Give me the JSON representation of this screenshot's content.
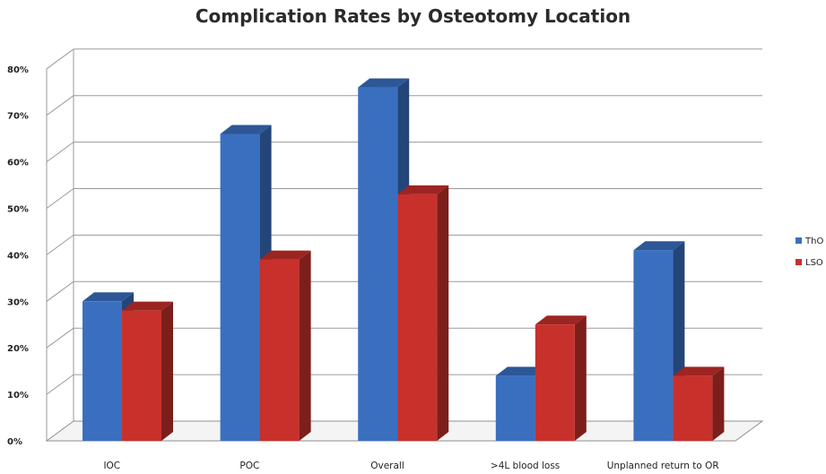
{
  "chart_data": {
    "type": "bar",
    "title": "Complication Rates by Osteotomy Location",
    "categories": [
      "IOC",
      "POC",
      "Overall",
      ">4L blood loss",
      "Unplanned return to OR"
    ],
    "series": [
      {
        "name": "ThO",
        "color": "#3a6fc0",
        "values": [
          30,
          66,
          76,
          14,
          41
        ]
      },
      {
        "name": "LSO",
        "color": "#c8302c",
        "values": [
          28,
          39,
          53,
          25,
          14
        ]
      }
    ],
    "ylim": [
      0,
      80
    ],
    "yticks": [
      "0%",
      "10%",
      "20%",
      "30%",
      "40%",
      "50%",
      "60%",
      "70%",
      "80%"
    ],
    "grid": true,
    "legend": "right",
    "xlabel": "",
    "ylabel": ""
  }
}
